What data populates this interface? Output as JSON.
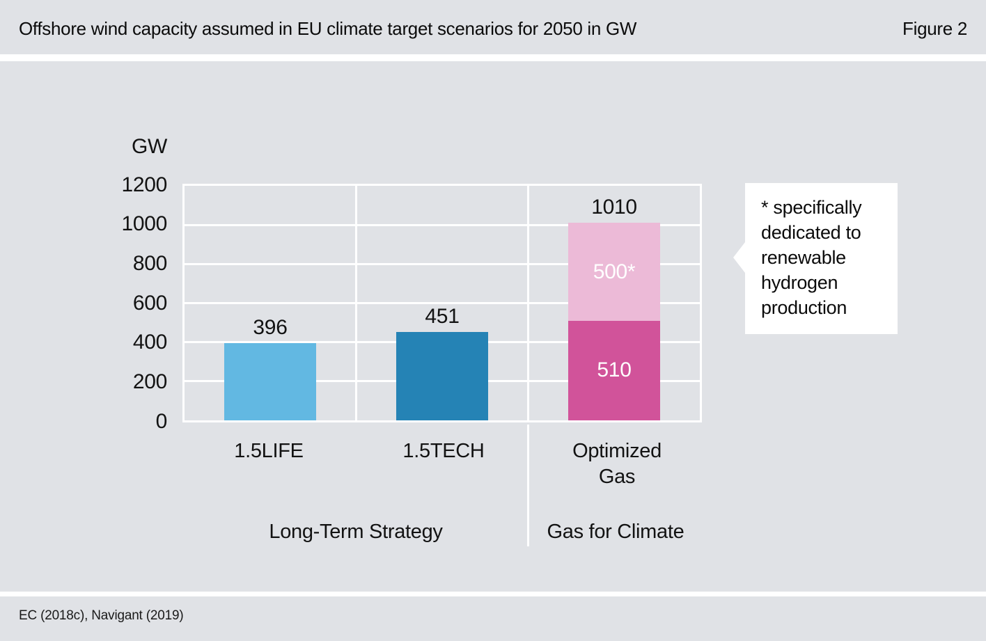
{
  "header": {
    "title": "Offshore wind capacity assumed in EU climate target scenarios for 2050 in GW",
    "figure_label": "Figure 2"
  },
  "footer": {
    "source": "EC (2018c), Navigant (2019)"
  },
  "chart_data": {
    "type": "bar",
    "subtype": "stacked-vertical",
    "title": "Offshore wind capacity assumed in EU climate target scenarios for 2050 in GW",
    "ylabel": "GW",
    "unit": "GW",
    "ylim": [
      0,
      1200
    ],
    "yticks": [
      0,
      200,
      400,
      600,
      800,
      1000,
      1200
    ],
    "grid": true,
    "legend_position": "none",
    "categories": [
      "1.5LIFE",
      "1.5TECH",
      "Optimized Gas"
    ],
    "groups": [
      {
        "label": "Long-Term Strategy",
        "categories": [
          "1.5LIFE",
          "1.5TECH"
        ]
      },
      {
        "label": "Gas for Climate",
        "categories": [
          "Optimized Gas"
        ]
      }
    ],
    "bars": [
      {
        "category": "1.5LIFE",
        "total": 396,
        "total_label": "396",
        "segments": [
          {
            "value": 396,
            "label": "",
            "color": "#62b8e2"
          }
        ]
      },
      {
        "category": "1.5TECH",
        "total": 451,
        "total_label": "451",
        "segments": [
          {
            "value": 451,
            "label": "",
            "color": "#2583b5"
          }
        ]
      },
      {
        "category": "Optimized Gas",
        "total": 1010,
        "total_label": "1010",
        "segments": [
          {
            "value": 510,
            "label": "510",
            "color": "#d1539a"
          },
          {
            "value": 500,
            "label": "500*",
            "color": "#ecbad7"
          }
        ]
      }
    ],
    "annotation": "* specifically dedicated to renewable hydrogen production"
  },
  "colors": {
    "background": "#e0e2e6",
    "grid": "#ffffff",
    "bar_light_blue": "#62b8e2",
    "bar_dark_blue": "#2583b5",
    "bar_dark_pink": "#d1539a",
    "bar_light_pink": "#ecbad7",
    "text": "#121212"
  }
}
